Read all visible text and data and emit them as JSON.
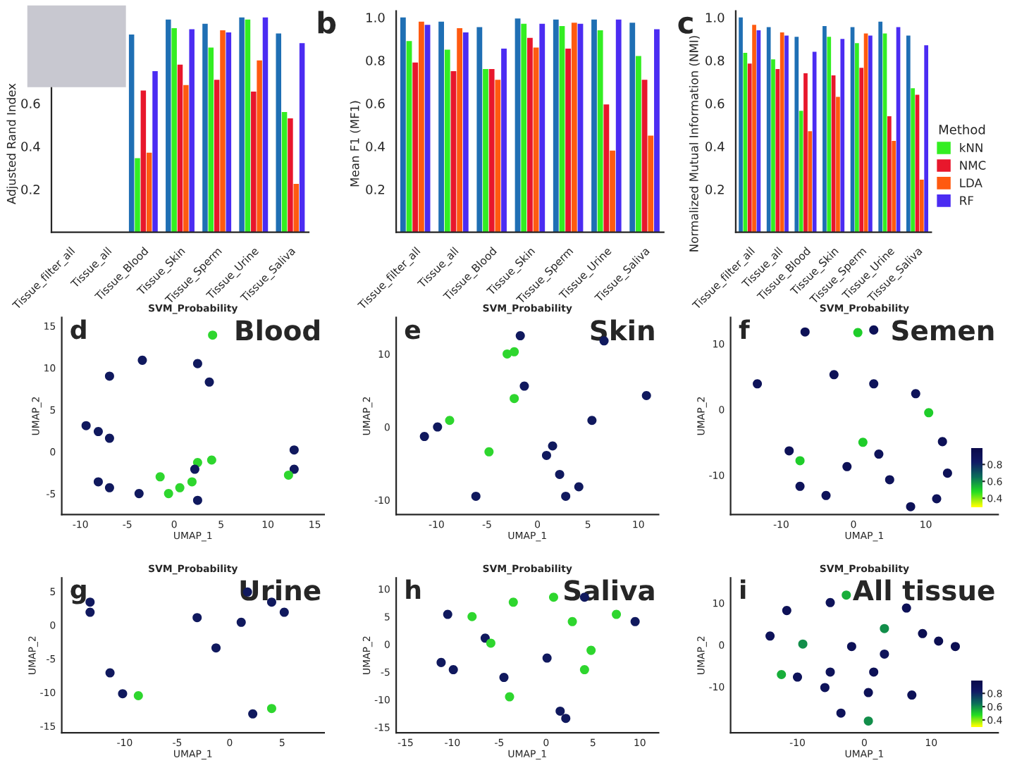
{
  "chart_data": [
    {
      "type": "bar",
      "ylabel": "Adjusted Rand Index",
      "categories": [
        "Tissue_filter_all",
        "Tissue_all",
        "Tissue_Blood",
        "Tissue_Skin",
        "Tissue_Sperm",
        "Tissue_Urine",
        "Tissue_Saliva"
      ],
      "ylim": [
        0,
        1.03
      ],
      "yticks": [
        0.2,
        0.4,
        0.6
      ],
      "series": [
        {
          "color": "#1f6fb4",
          "values": [
            null,
            null,
            0.92,
            0.99,
            0.97,
            1.0,
            0.925
          ]
        },
        {
          "color": "#33ee22",
          "values": [
            null,
            null,
            0.345,
            0.95,
            0.86,
            0.99,
            0.56
          ]
        },
        {
          "color": "#e8172c",
          "values": [
            null,
            null,
            0.66,
            0.78,
            0.71,
            0.655,
            0.53
          ]
        },
        {
          "color": "#ff5a10",
          "values": [
            null,
            null,
            0.37,
            0.685,
            0.94,
            0.8,
            0.225
          ]
        },
        {
          "color": "#4b2cf2",
          "values": [
            null,
            null,
            0.75,
            0.945,
            0.93,
            1.0,
            0.88
          ]
        }
      ]
    },
    {
      "type": "bar",
      "ylabel": "Mean F1 (MF1)",
      "categories": [
        "Tissue_filter_all",
        "Tissue_all",
        "Tissue_Blood",
        "Tissue_Skin",
        "Tissue_Sperm",
        "Tissue_Urine",
        "Tissue_Saliva"
      ],
      "ylim": [
        0,
        1.03
      ],
      "yticks": [
        0.2,
        0.4,
        0.6,
        0.8,
        {
          "value": 1.0,
          "label": "1.0"
        }
      ],
      "annotations": [
        "b"
      ],
      "series": [
        {
          "color": "#1f6fb4",
          "values": [
            1.0,
            0.98,
            0.955,
            0.995,
            0.99,
            0.99,
            0.975
          ]
        },
        {
          "color": "#33ee22",
          "values": [
            0.89,
            0.85,
            0.76,
            0.97,
            0.96,
            0.94,
            0.82
          ]
        },
        {
          "color": "#e8172c",
          "values": [
            0.79,
            0.75,
            0.76,
            0.905,
            0.855,
            0.595,
            0.71
          ]
        },
        {
          "color": "#ff5a10",
          "values": [
            0.98,
            0.95,
            0.71,
            0.86,
            0.975,
            0.38,
            0.45
          ]
        },
        {
          "color": "#4b2cf2",
          "values": [
            0.965,
            0.93,
            0.855,
            0.97,
            0.97,
            0.99,
            0.945
          ]
        }
      ]
    },
    {
      "type": "bar",
      "ylabel": "Normalized Mutual Information (NMI)",
      "categories": [
        "Tissue_filter_all",
        "Tissue_all",
        "Tissue_Blood",
        "Tissue_Skin",
        "Tissue_Sperm",
        "Tissue_Urine",
        "Tissue_Saliva"
      ],
      "ylim": [
        0,
        1.03
      ],
      "yticks": [
        0.2,
        0.4,
        0.6,
        0.8,
        {
          "value": 1.0,
          "label": "1.0"
        }
      ],
      "legend": "right",
      "legend_title": "Method",
      "annotations": [
        "c"
      ],
      "series": [
        {
          "color": "#1f6fb4",
          "values": [
            1.0,
            0.955,
            0.91,
            0.96,
            0.955,
            0.98,
            0.915
          ]
        },
        {
          "name": "kNN",
          "color": "#33ee22",
          "values": [
            0.835,
            0.805,
            0.565,
            0.91,
            0.88,
            0.925,
            0.67
          ]
        },
        {
          "name": "NMC",
          "color": "#e8172c",
          "values": [
            0.785,
            0.76,
            0.74,
            0.73,
            0.765,
            0.54,
            0.64
          ]
        },
        {
          "name": "LDA",
          "color": "#ff5a10",
          "values": [
            0.965,
            0.93,
            0.47,
            0.63,
            0.925,
            0.425,
            0.245
          ]
        },
        {
          "name": "RF",
          "color": "#4b2cf2",
          "values": [
            0.94,
            0.915,
            0.84,
            0.9,
            0.915,
            0.955,
            0.87
          ]
        }
      ]
    },
    {
      "type": "scatter",
      "title": "SVM_Probability",
      "xlabel": "UMAP_1",
      "ylabel": "UMAP_2",
      "annotations": [
        "d",
        "Blood"
      ],
      "marker": "circle",
      "xlim": [
        -12,
        16
      ],
      "ylim": [
        -7.5,
        16
      ],
      "xticks": [
        -10,
        -5,
        0,
        5,
        10,
        15
      ],
      "yticks": [
        -5,
        0,
        5,
        10,
        15
      ],
      "x": [
        -6.9,
        -3.4,
        2.5,
        3.75,
        4.1,
        -8.1,
        -9.4,
        -6.9,
        -6.9,
        -3.75,
        -8.1,
        -0.6,
        2.5,
        2.5,
        1.9,
        2.2,
        0.6,
        12.8,
        12.8,
        12.2,
        -1.5,
        4.0
      ],
      "values": [
        9.0,
        10.9,
        10.5,
        8.3,
        13.9,
        2.4,
        3.1,
        1.6,
        -4.3,
        -5.0,
        -3.6,
        -5.0,
        -5.8,
        -1.3,
        -3.6,
        -2.1,
        -4.3,
        0.2,
        -2.1,
        -2.8,
        -3.0,
        -1.0
      ],
      "colors": [
        "#10195e",
        "#10195e",
        "#10195e",
        "#10195e",
        "#2ed62e",
        "#10195e",
        "#10195e",
        "#10195e",
        "#10195e",
        "#10195e",
        "#10195e",
        "#2ed62e",
        "#10195e",
        "#2ed62e",
        "#2ed62e",
        "#10195e",
        "#2ed62e",
        "#10195e",
        "#10195e",
        "#2ed62e",
        "#2ed62e",
        "#2ed62e"
      ]
    },
    {
      "type": "scatter",
      "title": "SVM_Probability",
      "xlabel": "UMAP_1",
      "ylabel": "UMAP_2",
      "annotations": [
        "e",
        "Skin"
      ],
      "marker": "circle",
      "xlim": [
        -14,
        12
      ],
      "ylim": [
        -12,
        15
      ],
      "xticks": [
        -10,
        -5,
        0,
        5,
        10
      ],
      "yticks": [
        -10,
        0,
        10
      ],
      "x": [
        -1.7,
        -2.3,
        6.6,
        -1.3,
        -2.3,
        10.8,
        -9.9,
        -11.2,
        -8.7,
        5.4,
        2.2,
        0.9,
        4.1,
        2.8,
        -6.1,
        -4.8,
        1.5,
        -3.0
      ],
      "values": [
        12.5,
        10.3,
        11.8,
        5.6,
        3.9,
        4.3,
        0.0,
        -1.3,
        0.9,
        0.9,
        -6.5,
        -3.9,
        -8.2,
        -9.5,
        -9.5,
        -3.4,
        -2.6,
        10.0
      ],
      "colors": [
        "#10195e",
        "#2ed62e",
        "#10195e",
        "#10195e",
        "#2ed62e",
        "#10195e",
        "#10195e",
        "#10195e",
        "#2ed62e",
        "#10195e",
        "#10195e",
        "#10195e",
        "#10195e",
        "#10195e",
        "#10195e",
        "#2ed62e",
        "#10195e",
        "#2ed62e"
      ]
    },
    {
      "type": "scatter",
      "title": "SVM_Probability",
      "xlabel": "UMAP_1",
      "ylabel": "UMAP_2",
      "annotations": [
        "f",
        "Semen"
      ],
      "marker": "circle",
      "xlim": [
        -17,
        20
      ],
      "ylim": [
        -16,
        14
      ],
      "xticks": [
        -10,
        0,
        10
      ],
      "yticks": [
        -10,
        0,
        10
      ],
      "clim": [
        0.3,
        1.0
      ],
      "cticks": [
        0.4,
        0.6,
        0.8
      ],
      "x": [
        -6.7,
        2.8,
        0.6,
        -13.3,
        -2.7,
        2.8,
        8.6,
        10.4,
        12.3,
        13.0,
        11.5,
        7.9,
        5.0,
        3.5,
        1.3,
        -0.9,
        -3.8,
        -7.4,
        -8.9,
        -7.4
      ],
      "values": [
        11.8,
        12.1,
        11.7,
        3.9,
        5.3,
        3.9,
        2.4,
        -0.5,
        -4.9,
        -9.7,
        -13.6,
        -14.8,
        -10.7,
        -6.8,
        -5.0,
        -8.7,
        -13.1,
        -11.7,
        -6.3,
        -7.8
      ],
      "cvalues": [
        0.92,
        0.92,
        0.5,
        0.9,
        0.92,
        0.9,
        0.9,
        0.5,
        0.92,
        0.92,
        0.9,
        0.92,
        0.9,
        0.9,
        0.5,
        0.92,
        0.9,
        0.9,
        0.92,
        0.5
      ]
    },
    {
      "type": "scatter",
      "title": "SVM_Probability",
      "xlabel": "UMAP_1",
      "ylabel": "UMAP_2",
      "annotations": [
        "g",
        "Urine"
      ],
      "marker": "circle",
      "xlim": [
        -16,
        9
      ],
      "ylim": [
        -16,
        7
      ],
      "xticks": [
        -10,
        -5,
        0,
        5
      ],
      "yticks": [
        -15,
        -10,
        -5,
        0,
        5
      ],
      "x": [
        -13.3,
        -13.3,
        1.1,
        -3.1,
        4.0,
        -1.3,
        5.2,
        1.7,
        -11.4,
        -10.2,
        -8.7,
        2.2,
        4.0
      ],
      "values": [
        3.4,
        1.9,
        0.4,
        1.1,
        3.4,
        -3.4,
        1.9,
        4.9,
        -7.1,
        -10.2,
        -10.5,
        -13.2,
        -12.4
      ],
      "colors": [
        "#10195e",
        "#10195e",
        "#10195e",
        "#10195e",
        "#10195e",
        "#10195e",
        "#10195e",
        "#10195e",
        "#10195e",
        "#10195e",
        "#2ed62e",
        "#10195e",
        "#2ed62e"
      ]
    },
    {
      "type": "scatter",
      "title": "SVM_Probability",
      "xlabel": "UMAP_1",
      "ylabel": "UMAP_2",
      "annotations": [
        "h",
        "Saliva"
      ],
      "marker": "circle",
      "xlim": [
        -16,
        12
      ],
      "ylim": [
        -16,
        12
      ],
      "xticks": [
        -15,
        -10,
        -5,
        0,
        5,
        10
      ],
      "yticks": [
        -15,
        -10,
        -5,
        0,
        5,
        10
      ],
      "x": [
        -10.5,
        -7.9,
        -6.5,
        -5.9,
        -11.2,
        -9.9,
        -3.5,
        0.8,
        4.1,
        2.8,
        4.8,
        0.1,
        4.1,
        9.5,
        7.5,
        -4.5,
        -3.9,
        1.5,
        2.1
      ],
      "values": [
        5.4,
        5.0,
        1.1,
        0.2,
        -3.3,
        -4.6,
        7.6,
        8.5,
        8.5,
        4.1,
        -1.1,
        -2.5,
        -4.6,
        4.1,
        5.4,
        -6.0,
        -9.5,
        -12.1,
        -13.4
      ],
      "colors": [
        "#10195e",
        "#2ed62e",
        "#10195e",
        "#2ed62e",
        "#10195e",
        "#10195e",
        "#2ed62e",
        "#2ed62e",
        "#10195e",
        "#2ed62e",
        "#2ed62e",
        "#10195e",
        "#2ed62e",
        "#10195e",
        "#2ed62e",
        "#10195e",
        "#2ed62e",
        "#10195e",
        "#10195e"
      ]
    },
    {
      "type": "scatter",
      "title": "SVM_Probability",
      "xlabel": "UMAP_1",
      "ylabel": "UMAP_2",
      "annotations": [
        "i",
        "All tissue"
      ],
      "marker": "circle",
      "xlim": [
        -20,
        20
      ],
      "ylim": [
        -21,
        16
      ],
      "xticks": [
        -10,
        0,
        10
      ],
      "yticks": [
        -10,
        0,
        10
      ],
      "clim": [
        0.3,
        1.0
      ],
      "cticks": [
        0.4,
        0.6,
        0.8
      ],
      "x": [
        -2.7,
        -5.1,
        -14.1,
        -11.6,
        -9.2,
        -12.4,
        -10.0,
        -1.9,
        -5.1,
        1.4,
        3.0,
        3.0,
        6.3,
        11.1,
        13.6,
        8.7,
        0.6,
        -3.5,
        0.6,
        -5.9,
        7.1
      ],
      "values": [
        11.9,
        10.1,
        2.1,
        8.2,
        0.2,
        -7.1,
        -7.7,
        -0.4,
        -6.5,
        -6.5,
        -2.2,
        3.9,
        8.8,
        0.9,
        -0.4,
        2.7,
        -11.4,
        -16.3,
        -18.2,
        -10.2,
        -12.0
      ],
      "cvalues": [
        0.55,
        0.9,
        0.9,
        0.92,
        0.6,
        0.55,
        0.9,
        0.92,
        0.9,
        0.92,
        0.9,
        0.6,
        0.92,
        0.95,
        0.95,
        0.95,
        0.92,
        0.9,
        0.6,
        0.9,
        0.92
      ]
    }
  ]
}
